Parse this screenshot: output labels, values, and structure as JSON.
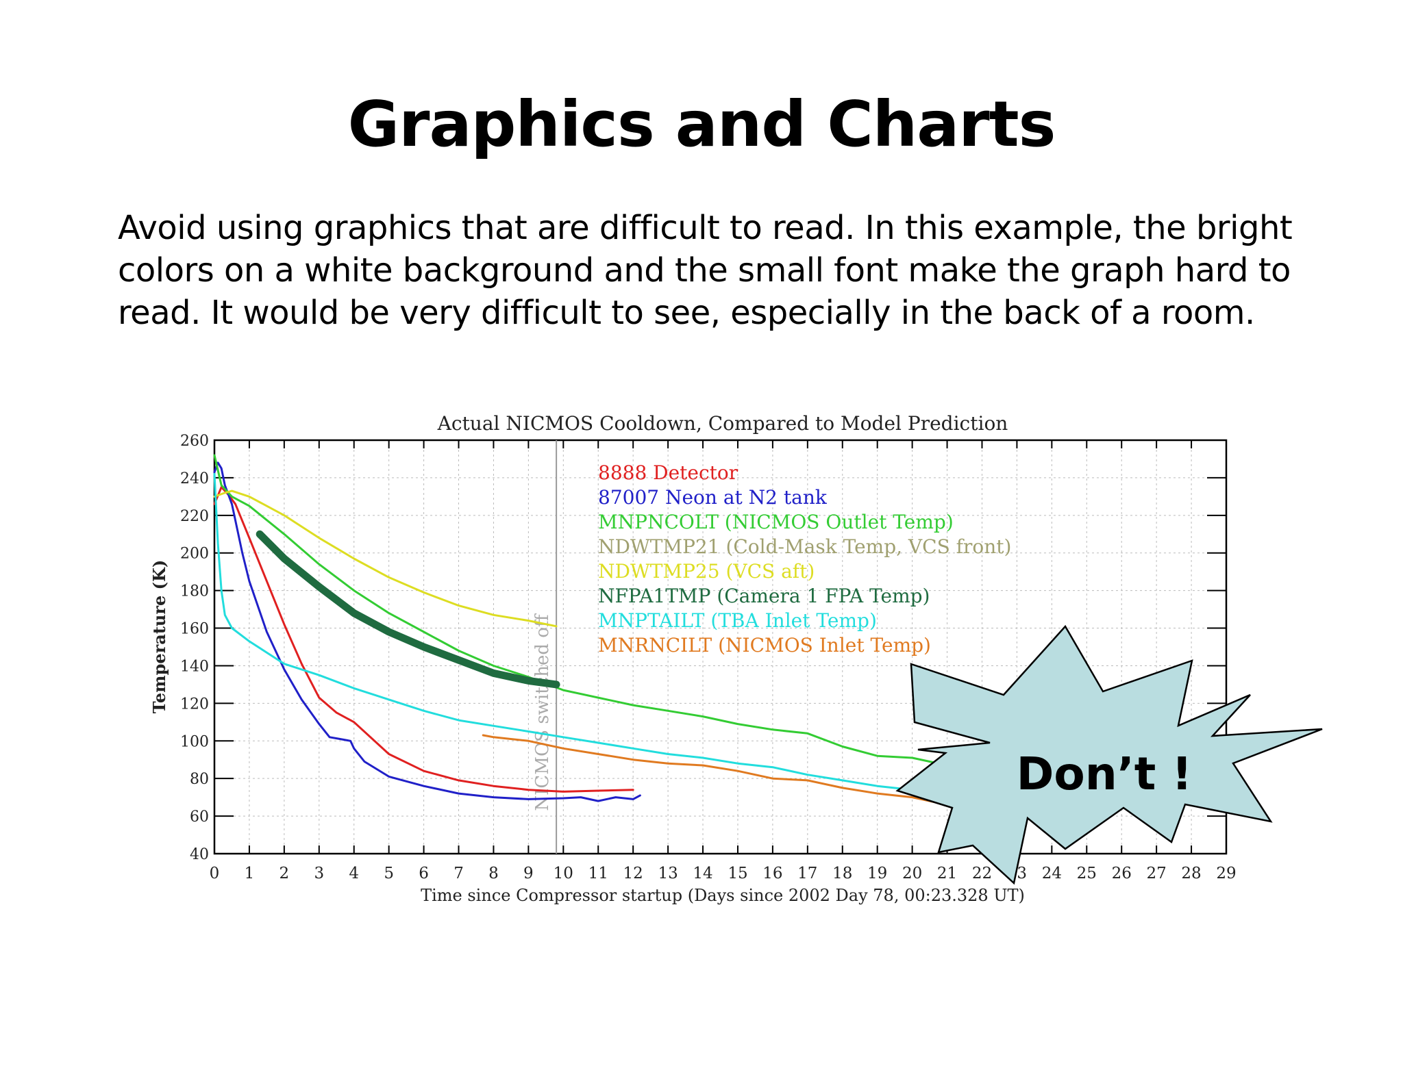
{
  "slide": {
    "title": "Graphics and Charts",
    "body_lines": [
      "Avoid using graphics that are difficult to read. In this example, the bright",
      "colors on a white background and the small font make the graph hard to",
      "read. It would be very difficult to see, especially in the back of a room."
    ],
    "callout": "Don’t !",
    "callout_color": "#b9dde0"
  },
  "chart_data": {
    "type": "line",
    "title": "Actual NICMOS Cooldown, Compared to Model Prediction",
    "xlabel": "Time since Compressor startup (Days since 2002 Day 78, 00:23.328 UT)",
    "ylabel": "Temperature (K)",
    "xlim": [
      0,
      29
    ],
    "ylim": [
      40,
      260
    ],
    "xticks": [
      0,
      1,
      2,
      3,
      4,
      5,
      6,
      7,
      8,
      9,
      10,
      11,
      12,
      13,
      14,
      15,
      16,
      17,
      18,
      19,
      20,
      21,
      22,
      23,
      24,
      25,
      26,
      27,
      28,
      29
    ],
    "yticks": [
      40,
      60,
      80,
      100,
      120,
      140,
      160,
      180,
      200,
      220,
      240,
      260
    ],
    "grid": true,
    "legend_position": "top-center",
    "annotation": {
      "text": "NICMOS switched off",
      "x": 9.8
    },
    "series": [
      {
        "name": "8888 Detector",
        "color": "#e02020",
        "width": 3,
        "x": [
          0,
          0.2,
          0.4,
          0.6,
          1,
          1.5,
          2,
          2.5,
          3,
          3.5,
          4,
          5,
          6,
          7,
          8,
          9,
          10,
          11,
          12
        ],
        "y": [
          226,
          235,
          231,
          226,
          208,
          185,
          162,
          141,
          123,
          115,
          110,
          93,
          84,
          79,
          76,
          74,
          73,
          73.5,
          74
        ]
      },
      {
        "name": "87007 Neon at N2 tank",
        "color": "#2020c8",
        "width": 3,
        "x": [
          0,
          0.1,
          0.2,
          0.3,
          0.5,
          0.8,
          1,
          1.5,
          2,
          2.5,
          3,
          3.3,
          3.6,
          3.9,
          4,
          4.3,
          5,
          6,
          7,
          8,
          9,
          10,
          10.5,
          11,
          11.5,
          12,
          12.2
        ],
        "y": [
          243,
          248,
          245,
          236,
          226,
          200,
          185,
          158,
          138,
          122,
          109,
          102,
          101,
          100,
          96,
          89,
          81,
          76,
          72,
          70,
          69,
          69.5,
          70,
          68,
          70,
          69,
          71
        ]
      },
      {
        "name": "MNPNCOLT (NICMOS Outlet Temp)",
        "color": "#33cc33",
        "width": 3,
        "x": [
          0,
          0.2,
          0.5,
          1,
          2,
          3,
          4,
          5,
          6,
          7,
          8,
          9,
          10,
          11,
          12,
          13,
          14,
          15,
          16,
          17,
          18,
          19,
          20,
          21,
          22
        ],
        "y": [
          252,
          236,
          230,
          225,
          210,
          194,
          180,
          168,
          158,
          148,
          140,
          134,
          127,
          123,
          119,
          116,
          113,
          109,
          106,
          104,
          97,
          92,
          91,
          87,
          84
        ]
      },
      {
        "name": "NDWTMP21 (Cold-Mask Temp, VCS front)",
        "color": "#a0a070",
        "width": 0,
        "x": [],
        "y": []
      },
      {
        "name": "NDWTMP25 (VCS aft)",
        "color": "#dddd22",
        "width": 3,
        "x": [
          0,
          0.3,
          0.5,
          1,
          2,
          3,
          4,
          5,
          6,
          7,
          8,
          9,
          9.8
        ],
        "y": [
          230,
          232,
          233,
          230,
          220,
          208,
          197,
          187,
          179,
          172,
          167,
          164,
          161
        ]
      },
      {
        "name": "NFPA1TMP (Camera 1 FPA Temp)",
        "color": "#1f6b40",
        "width": 11,
        "x": [
          1.3,
          2,
          3,
          4,
          5,
          6,
          7,
          8,
          9,
          9.8
        ],
        "y": [
          210,
          197,
          182,
          168,
          158,
          150,
          143,
          136,
          132,
          130
        ]
      },
      {
        "name": "MNPTAILT (TBA Inlet Temp)",
        "color": "#22dddd",
        "width": 3,
        "x": [
          0,
          0.1,
          0.2,
          0.3,
          0.5,
          1,
          1.5,
          2,
          3,
          4,
          5,
          6,
          7,
          8,
          9,
          10,
          11,
          12,
          13,
          14,
          15,
          16,
          17,
          18,
          19,
          20,
          20.5
        ],
        "y": [
          242,
          205,
          180,
          167,
          160,
          153,
          147,
          141,
          135,
          128,
          122,
          116,
          111,
          108,
          105,
          102,
          99,
          96,
          93,
          91,
          88,
          86,
          82,
          79,
          76,
          74,
          74
        ]
      },
      {
        "name": "MNRNCILT (NICMOS Inlet Temp)",
        "color": "#e07a20",
        "width": 3,
        "x": [
          7.7,
          8,
          9,
          10,
          11,
          12,
          13,
          14,
          15,
          16,
          17,
          18,
          19,
          20,
          21
        ],
        "y": [
          103,
          102,
          100,
          96,
          93,
          90,
          88,
          87,
          84,
          80,
          79,
          75,
          72,
          70,
          66
        ]
      }
    ]
  }
}
